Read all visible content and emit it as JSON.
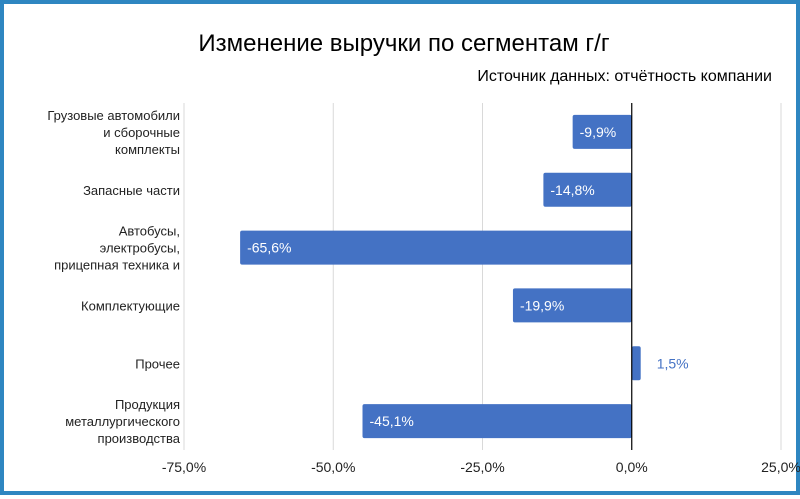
{
  "chart_data": {
    "type": "bar",
    "orientation": "horizontal",
    "title": "Изменение выручки по сегментам г/г",
    "subtitle": "Источник данных: отчётность компании",
    "categories": [
      [
        "Грузовые автомобили",
        "и сборочные",
        "комплекты"
      ],
      [
        "Запасные части"
      ],
      [
        "Автобусы,",
        "электробусы,",
        "прицепная техника и"
      ],
      [
        "Комплектующие"
      ],
      [
        "Прочее"
      ],
      [
        "Продукция",
        "металлургического",
        "производства"
      ]
    ],
    "values": [
      -9.9,
      -14.8,
      -65.6,
      -19.9,
      1.5,
      -45.1
    ],
    "data_labels": [
      "-9,9%",
      "-14,8%",
      "-65,6%",
      "-19,9%",
      "1,5%",
      "-45,1%"
    ],
    "xlim": [
      -75,
      25
    ],
    "x_ticks": [
      -75,
      -50,
      -25,
      0,
      25
    ],
    "x_tick_labels": [
      "-75,0%",
      "-50,0%",
      "-25,0%",
      "0,0%",
      "25,0%"
    ],
    "gridlines": true,
    "legend": "none",
    "bar_color": "#4472c4",
    "outside_label_color": "#4472c4",
    "inside_label_color": "#ffffff"
  }
}
